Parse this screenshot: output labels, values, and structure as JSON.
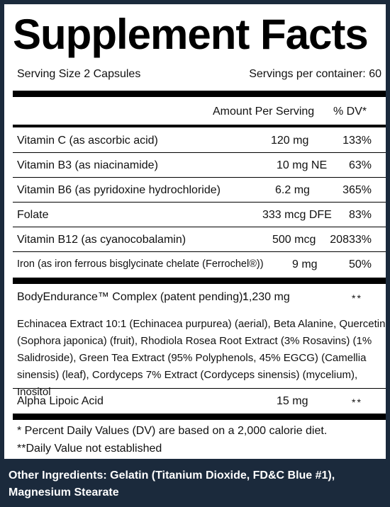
{
  "title": "Supplement Facts",
  "serving_size": "Serving Size 2 Capsules",
  "servings_per_container": "Servings per container: 60",
  "header": {
    "amount": "Amount Per Serving",
    "dv": "% DV*"
  },
  "nutrients": [
    {
      "name": "Vitamin C (as ascorbic acid)",
      "amount": "120 mg",
      "dv": "133%"
    },
    {
      "name": "Vitamin B3 (as niacinamide)",
      "amount": "10 mg NE",
      "dv": "63%"
    },
    {
      "name": "Vitamin B6 (as pyridoxine hydrochloride)",
      "amount": "6.2 mg",
      "dv": "365%"
    },
    {
      "name": "Folate",
      "amount": "333 mcg DFE",
      "dv": "83%"
    },
    {
      "name": "Vitamin B12 (as cyanocobalamin)",
      "amount": "500 mcg",
      "dv": "20833%"
    },
    {
      "name": "Iron (as iron ferrous bisglycinate chelate (Ferrochel®))",
      "amount": "9 mg",
      "dv": "50%"
    }
  ],
  "complex": {
    "name": "BodyEndurance™ Complex (patent pending):",
    "amount": "1,230 mg",
    "dv": "**",
    "description": "Echinacea Extract 10:1 (Echinacea purpurea) (aerial), Beta Alanine, Quercetin (Sophora japonica) (fruit), Rhodiola Rosea Root Extract (3% Rosavins) (1% Salidroside), Green Tea Extract (95% Polyphenols, 45% EGCG) (Camellia sinensis) (leaf), Cordyceps 7% Extract (Cordyceps sinensis) (mycelium), Inositol"
  },
  "alpha": {
    "name": "Alpha Lipoic Acid",
    "amount": "15 mg",
    "dv": "**"
  },
  "footnotes": {
    "dv_note": "* Percent Daily Values (DV) are based on a 2,000 calorie diet.",
    "not_established": "**Daily Value not established"
  },
  "other_ingredients": "Other Ingredients: Gelatin (Titanium Dioxide, FD&C Blue #1), Magnesium Stearate",
  "colors": {
    "background": "#1b2a3c",
    "panel": "#ffffff",
    "text": "#111111"
  }
}
